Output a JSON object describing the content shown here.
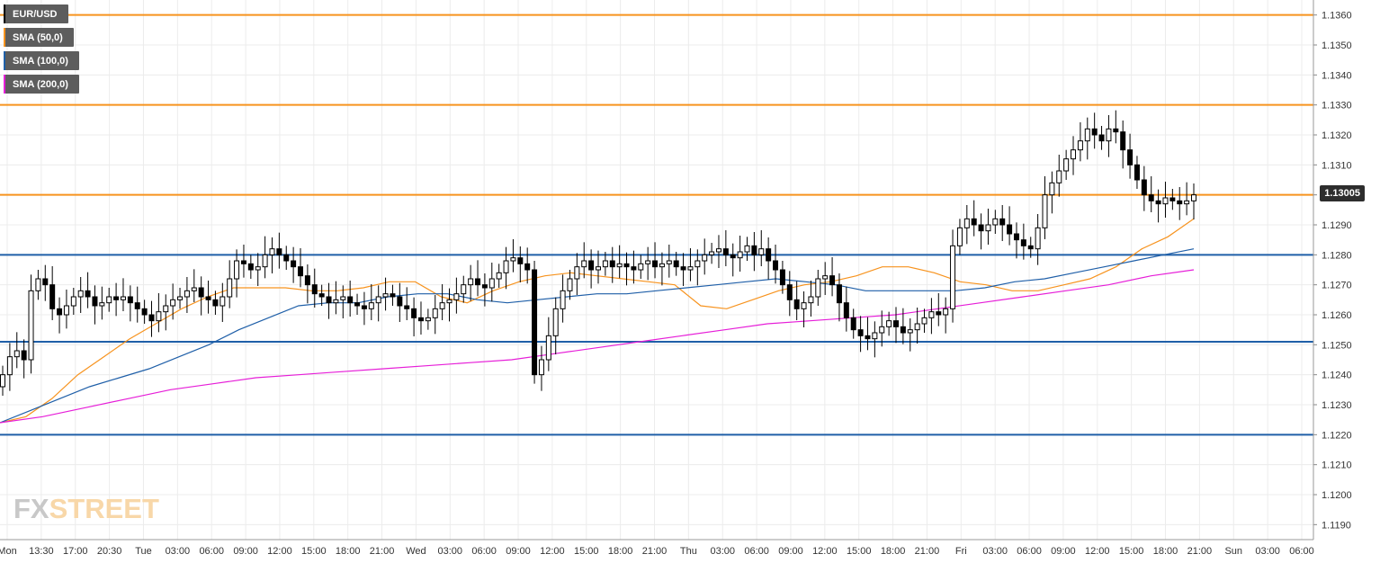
{
  "legend": [
    {
      "label": "EUR/USD",
      "color": "#000000"
    },
    {
      "label": "SMA (50,0)",
      "color": "#f7931e"
    },
    {
      "label": "SMA (100,0)",
      "color": "#1f5fa8"
    },
    {
      "label": "SMA (200,0)",
      "color": "#e61ed8"
    }
  ],
  "logo": {
    "fx": "FX",
    "street": "STREET"
  },
  "last_price": "1.13005",
  "chart_data": {
    "type": "candlestick",
    "symbol": "EUR/USD",
    "ylim": [
      1.1185,
      1.1365
    ],
    "y_ticks": [
      "1.1190",
      "1.1200",
      "1.1210",
      "1.1220",
      "1.1230",
      "1.1240",
      "1.1250",
      "1.1260",
      "1.1270",
      "1.1280",
      "1.1290",
      "1.1300",
      "1.1310",
      "1.1320",
      "1.1330",
      "1.1340",
      "1.1350",
      "1.1360"
    ],
    "x_ticks": [
      "Mon",
      "13:30",
      "17:00",
      "20:30",
      "Tue",
      "03:00",
      "06:00",
      "09:00",
      "12:00",
      "15:00",
      "18:00",
      "21:00",
      "Wed",
      "03:00",
      "06:00",
      "09:00",
      "12:00",
      "15:00",
      "18:00",
      "21:00",
      "Thu",
      "03:00",
      "06:00",
      "09:00",
      "12:00",
      "15:00",
      "18:00",
      "21:00",
      "Fri",
      "03:00",
      "06:00",
      "09:00",
      "12:00",
      "15:00",
      "18:00",
      "21:00",
      "Sun",
      "03:00",
      "06:00"
    ],
    "horizontal_levels": [
      {
        "value": 1.136,
        "color": "#f7931e"
      },
      {
        "value": 1.133,
        "color": "#f7931e"
      },
      {
        "value": 1.13,
        "color": "#f7931e"
      },
      {
        "value": 1.128,
        "color": "#1f5fa8"
      },
      {
        "value": 1.1251,
        "color": "#1f5fa8"
      },
      {
        "value": 1.122,
        "color": "#1f5fa8"
      }
    ],
    "close_series": [
      1.124,
      1.1246,
      1.1248,
      1.1245,
      1.1268,
      1.1272,
      1.127,
      1.1262,
      1.126,
      1.1263,
      1.1266,
      1.1268,
      1.1266,
      1.1263,
      1.1264,
      1.1266,
      1.1265,
      1.1266,
      1.1264,
      1.1262,
      1.126,
      1.1258,
      1.1261,
      1.1263,
      1.1265,
      1.1266,
      1.1268,
      1.1269,
      1.1266,
      1.1265,
      1.1263,
      1.1266,
      1.1272,
      1.1278,
      1.1277,
      1.1275,
      1.1276,
      1.128,
      1.1282,
      1.128,
      1.1278,
      1.1276,
      1.1273,
      1.127,
      1.1267,
      1.1266,
      1.1264,
      1.1265,
      1.1266,
      1.1264,
      1.1263,
      1.1262,
      1.1264,
      1.1266,
      1.1267,
      1.1266,
      1.1263,
      1.1262,
      1.1259,
      1.1258,
      1.1259,
      1.1262,
      1.1264,
      1.1265,
      1.1267,
      1.127,
      1.1272,
      1.127,
      1.1269,
      1.1272,
      1.1274,
      1.1278,
      1.1279,
      1.1277,
      1.1275,
      1.124,
      1.1245,
      1.1253,
      1.1262,
      1.1268,
      1.1272,
      1.1276,
      1.1278,
      1.1275,
      1.1276,
      1.1278,
      1.1276,
      1.1277,
      1.1276,
      1.1275,
      1.1277,
      1.1278,
      1.1276,
      1.1277,
      1.1278,
      1.1276,
      1.1275,
      1.1276,
      1.1278,
      1.128,
      1.1281,
      1.1282,
      1.128,
      1.1279,
      1.1281,
      1.1283,
      1.128,
      1.1282,
      1.1278,
      1.1275,
      1.127,
      1.1265,
      1.1262,
      1.1264,
      1.1266,
      1.1272,
      1.1273,
      1.127,
      1.1264,
      1.1259,
      1.1255,
      1.1253,
      1.1252,
      1.1254,
      1.1256,
      1.1258,
      1.1256,
      1.1254,
      1.1255,
      1.1257,
      1.1259,
      1.1261,
      1.126,
      1.1262,
      1.1283,
      1.1289,
      1.1292,
      1.129,
      1.1288,
      1.129,
      1.1292,
      1.129,
      1.1287,
      1.1285,
      1.1283,
      1.1282,
      1.1289,
      1.13,
      1.1304,
      1.1308,
      1.1312,
      1.1315,
      1.1318,
      1.1322,
      1.132,
      1.1318,
      1.1322,
      1.1321,
      1.1315,
      1.131,
      1.1305,
      1.13,
      1.1298,
      1.1297,
      1.1299,
      1.1298,
      1.1297,
      1.1298,
      1.13
    ],
    "sma_50": [
      1.1224,
      1.1226,
      1.1232,
      1.124,
      1.1246,
      1.1252,
      1.1257,
      1.1262,
      1.1266,
      1.1269,
      1.1269,
      1.1269,
      1.1268,
      1.1268,
      1.1269,
      1.1271,
      1.1271,
      1.1266,
      1.1264,
      1.1268,
      1.1271,
      1.1273,
      1.1274,
      1.1273,
      1.1272,
      1.1271,
      1.127,
      1.1263,
      1.1262,
      1.1265,
      1.1268,
      1.127,
      1.1271,
      1.1273,
      1.1276,
      1.1276,
      1.1274,
      1.1271,
      1.127,
      1.1268,
      1.1268,
      1.127,
      1.1272,
      1.1276,
      1.1282,
      1.1286,
      1.1292
    ],
    "sma_100": [
      1.1224,
      1.1228,
      1.1232,
      1.1236,
      1.1239,
      1.1242,
      1.1246,
      1.125,
      1.1255,
      1.1259,
      1.1263,
      1.1264,
      1.1264,
      1.1266,
      1.1267,
      1.1267,
      1.1265,
      1.1264,
      1.1265,
      1.1266,
      1.1267,
      1.1267,
      1.1268,
      1.1269,
      1.127,
      1.1271,
      1.1272,
      1.1271,
      1.127,
      1.1268,
      1.1268,
      1.1268,
      1.1268,
      1.1269,
      1.1271,
      1.1272,
      1.1274,
      1.1276,
      1.1278,
      1.128,
      1.1282
    ],
    "sma_200": [
      1.1224,
      1.1226,
      1.1229,
      1.1232,
      1.1235,
      1.1237,
      1.1239,
      1.124,
      1.1241,
      1.1242,
      1.1243,
      1.1244,
      1.1245,
      1.1247,
      1.1249,
      1.1251,
      1.1253,
      1.1255,
      1.1257,
      1.1258,
      1.1259,
      1.126,
      1.1262,
      1.1264,
      1.1266,
      1.1268,
      1.127,
      1.1273,
      1.1275
    ],
    "grid": true
  }
}
